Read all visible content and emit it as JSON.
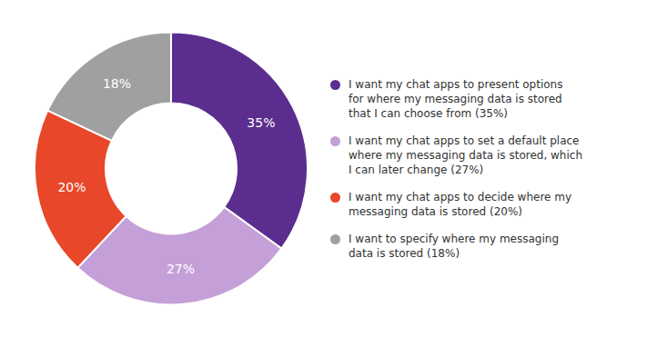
{
  "chart_data": {
    "type": "pie",
    "categories": [
      "I want my chat apps to present options\nfor where my messaging data is stored\nthat I can choose from (35%)",
      "I want my chat apps to set a default place\nwhere my messaging data is stored, which\nI can later change (27%)",
      "I want my chat apps to decide where my\nmessaging data is stored (20%)",
      "I want to specify where my messaging\ndata is stored (18%)"
    ],
    "values": [
      35,
      27,
      20,
      18
    ],
    "value_labels": [
      "35%",
      "27%",
      "20%",
      "18%"
    ],
    "colors": [
      "#5b2d8e",
      "#c49fd8",
      "#e8472a",
      "#a0a0a0"
    ],
    "data_labels": true,
    "legend": "right"
  }
}
